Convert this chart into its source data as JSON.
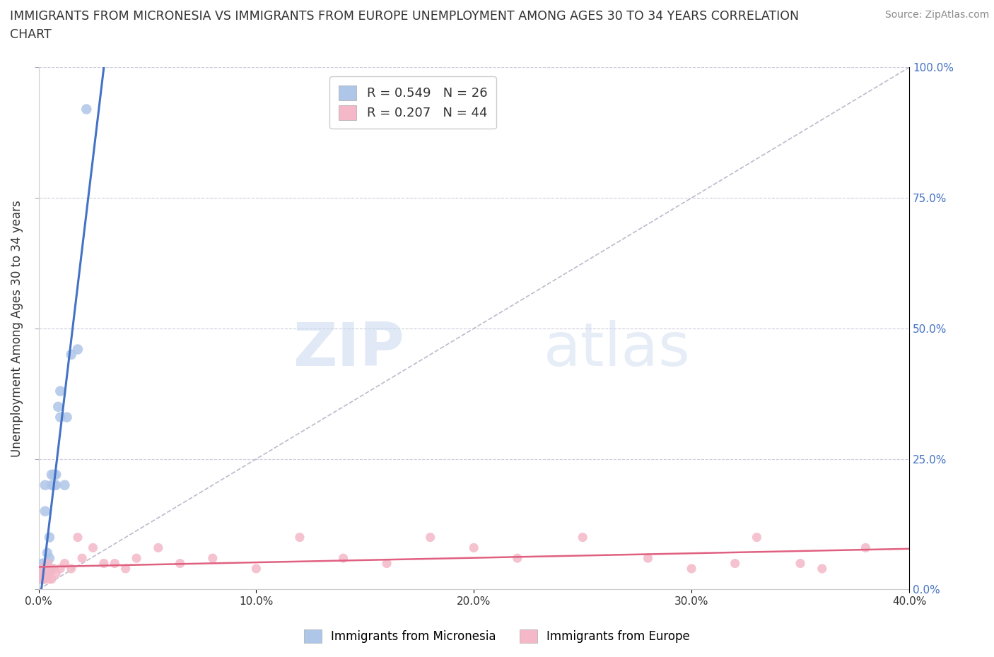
{
  "title_line1": "IMMIGRANTS FROM MICRONESIA VS IMMIGRANTS FROM EUROPE UNEMPLOYMENT AMONG AGES 30 TO 34 YEARS CORRELATION",
  "title_line2": "CHART",
  "source": "Source: ZipAtlas.com",
  "ylabel": "Unemployment Among Ages 30 to 34 years",
  "xlim": [
    0.0,
    0.4
  ],
  "ylim": [
    0.0,
    1.0
  ],
  "xticks": [
    0.0,
    0.1,
    0.2,
    0.3,
    0.4
  ],
  "xtick_labels": [
    "0.0%",
    "10.0%",
    "20.0%",
    "30.0%",
    "40.0%"
  ],
  "yticks": [
    0.0,
    0.25,
    0.5,
    0.75,
    1.0
  ],
  "ytick_labels": [
    "0.0%",
    "25.0%",
    "50.0%",
    "75.0%",
    "100.0%"
  ],
  "micronesia_R": 0.549,
  "micronesia_N": 26,
  "europe_R": 0.207,
  "europe_N": 44,
  "micronesia_color": "#aec6e8",
  "europe_color": "#f4b8c8",
  "micronesia_line_color": "#4472c4",
  "europe_line_color": "#e06080",
  "legend_label_micronesia": "Immigrants from Micronesia",
  "legend_label_europe": "Immigrants from Europe",
  "watermark_zip": "ZIP",
  "watermark_atlas": "atlas",
  "micronesia_x": [
    0.001,
    0.002,
    0.002,
    0.003,
    0.003,
    0.003,
    0.004,
    0.004,
    0.004,
    0.005,
    0.005,
    0.005,
    0.006,
    0.006,
    0.007,
    0.007,
    0.008,
    0.008,
    0.009,
    0.01,
    0.01,
    0.012,
    0.013,
    0.015,
    0.018,
    0.022
  ],
  "micronesia_y": [
    0.03,
    0.05,
    0.02,
    0.04,
    0.15,
    0.2,
    0.03,
    0.05,
    0.07,
    0.04,
    0.06,
    0.1,
    0.2,
    0.22,
    0.2,
    0.22,
    0.2,
    0.22,
    0.35,
    0.33,
    0.38,
    0.2,
    0.33,
    0.45,
    0.46,
    0.92
  ],
  "europe_x": [
    0.001,
    0.001,
    0.002,
    0.002,
    0.003,
    0.003,
    0.003,
    0.004,
    0.004,
    0.005,
    0.005,
    0.005,
    0.006,
    0.006,
    0.007,
    0.008,
    0.01,
    0.012,
    0.015,
    0.018,
    0.02,
    0.025,
    0.03,
    0.035,
    0.04,
    0.045,
    0.055,
    0.065,
    0.08,
    0.1,
    0.12,
    0.14,
    0.16,
    0.18,
    0.2,
    0.22,
    0.25,
    0.28,
    0.3,
    0.32,
    0.33,
    0.35,
    0.36,
    0.38
  ],
  "europe_y": [
    0.02,
    0.04,
    0.03,
    0.02,
    0.03,
    0.04,
    0.02,
    0.03,
    0.05,
    0.02,
    0.04,
    0.03,
    0.04,
    0.02,
    0.04,
    0.03,
    0.04,
    0.05,
    0.04,
    0.1,
    0.06,
    0.08,
    0.05,
    0.05,
    0.04,
    0.06,
    0.08,
    0.05,
    0.06,
    0.04,
    0.1,
    0.06,
    0.05,
    0.1,
    0.08,
    0.06,
    0.1,
    0.06,
    0.04,
    0.05,
    0.1,
    0.05,
    0.04,
    0.08
  ],
  "diag_line_color": "#bbbbcc",
  "grid_color": "#ccccdd",
  "tick_color": "#4472c4",
  "axis_color": "#333333"
}
